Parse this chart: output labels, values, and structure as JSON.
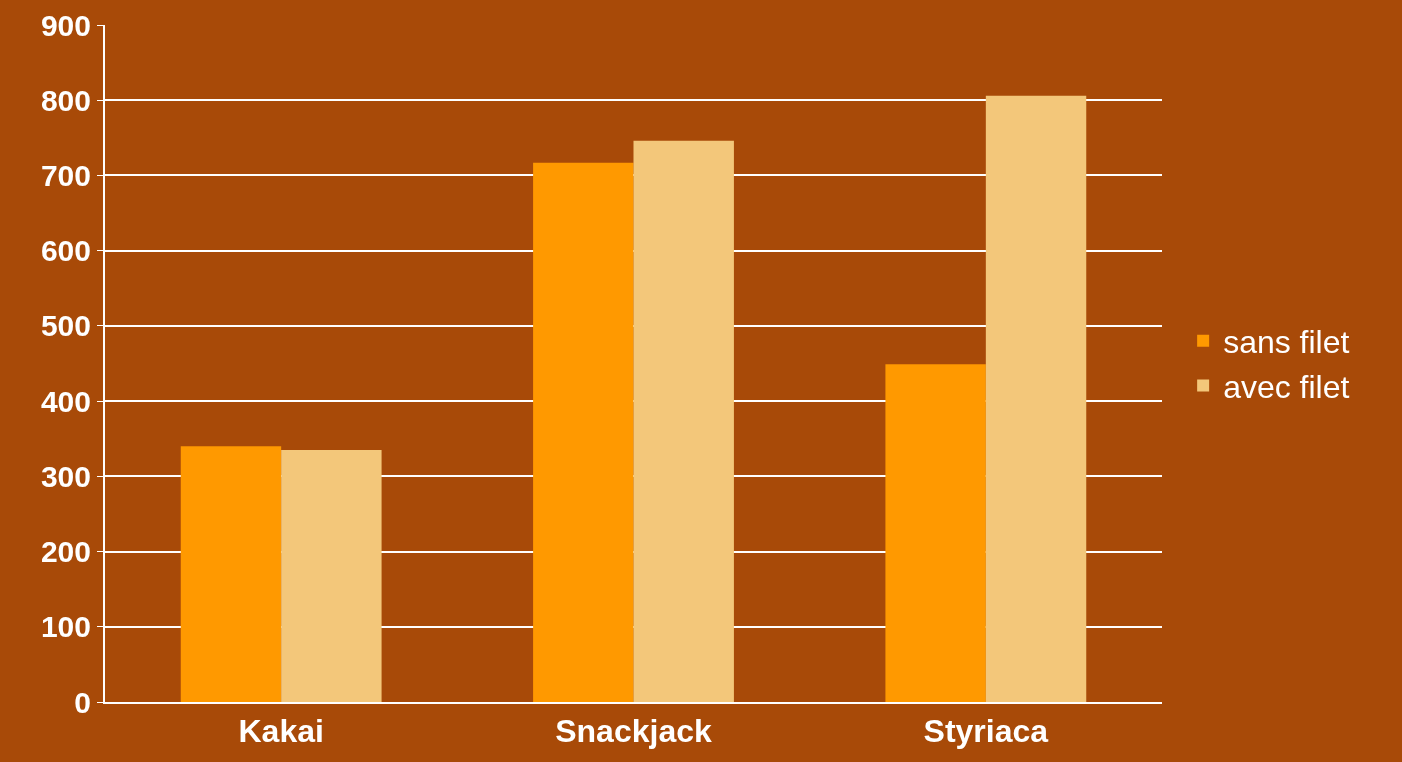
{
  "chart_data": {
    "type": "bar",
    "categories": [
      "Kakai",
      "Snackjack",
      "Styriaca"
    ],
    "series": [
      {
        "name": "sans filet",
        "color": "#ff9900",
        "values": [
          340,
          717,
          449
        ]
      },
      {
        "name": "avec filet",
        "color": "#f3c77a",
        "values": [
          335,
          746,
          806
        ]
      }
    ],
    "ylim": [
      0,
      900
    ],
    "yticks": [
      0,
      100,
      200,
      300,
      400,
      500,
      600,
      700,
      800,
      900
    ],
    "grid": "y",
    "legend": "right"
  }
}
